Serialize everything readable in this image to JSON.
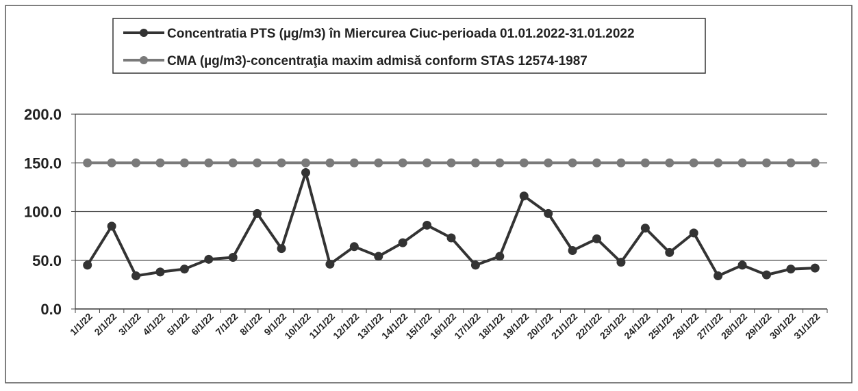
{
  "chart_data": {
    "type": "line",
    "categories": [
      "1/1/22",
      "2/1/22",
      "3/1/22",
      "4/1/22",
      "5/1/22",
      "6/1/22",
      "7/1/22",
      "8/1/22",
      "9/1/22",
      "10/1/22",
      "11/1/22",
      "12/1/22",
      "13/1/22",
      "14/1/22",
      "15/1/22",
      "16/1/22",
      "17/1/22",
      "18/1/22",
      "19/1/22",
      "20/1/22",
      "21/1/22",
      "22/1/22",
      "23/1/22",
      "24/1/22",
      "25/1/22",
      "26/1/22",
      "27/1/22",
      "28/1/22",
      "29/1/22",
      "30/1/22",
      "31/1/22"
    ],
    "series": [
      {
        "name": "Concentratia PTS (µg/m3) în Miercurea Ciuc-perioada 01.01.2022-31.01.2022",
        "color": "#333333",
        "values": [
          45,
          85,
          34,
          38,
          41,
          51,
          53,
          98,
          62,
          140,
          46,
          64,
          54,
          68,
          86,
          73,
          45,
          54,
          116,
          98,
          60,
          72,
          48,
          83,
          58,
          78,
          34,
          45,
          35,
          41,
          42
        ]
      },
      {
        "name": "CMA (µg/m3)-concentraţia maxim admisă conform STAS 12574-1987",
        "color": "#7a7a7a",
        "values": [
          150,
          150,
          150,
          150,
          150,
          150,
          150,
          150,
          150,
          150,
          150,
          150,
          150,
          150,
          150,
          150,
          150,
          150,
          150,
          150,
          150,
          150,
          150,
          150,
          150,
          150,
          150,
          150,
          150,
          150,
          150
        ]
      }
    ],
    "ylim": [
      0,
      200
    ],
    "yticks": [
      {
        "value": 0,
        "label": "0.0"
      },
      {
        "value": 50,
        "label": "50.0"
      },
      {
        "value": 100,
        "label": "100.0"
      },
      {
        "value": 150,
        "label": "150.0"
      },
      {
        "value": 200,
        "label": "200.0"
      }
    ],
    "grid": true,
    "legend": "top"
  }
}
